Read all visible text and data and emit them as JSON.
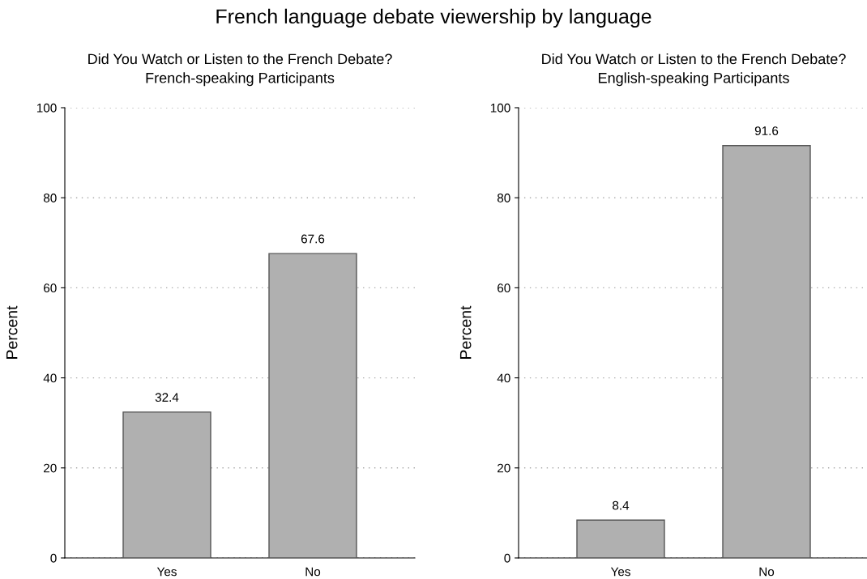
{
  "chart_data": [
    {
      "type": "bar",
      "title": "Did You Watch or Listen to the French Debate?",
      "subtitle": "French-speaking Participants",
      "ylabel": "Percent",
      "categories": [
        "Yes",
        "No"
      ],
      "values": [
        32.4,
        67.6
      ],
      "color": "#b0b0b0",
      "ylim": [
        0,
        100
      ],
      "yticks": [
        0,
        20,
        40,
        60,
        80,
        100
      ],
      "grid": "y",
      "data_labels": true,
      "annotations": [
        "French language debate viewership by language"
      ]
    },
    {
      "type": "bar",
      "title": "Did You Watch or Listen to the French Debate?",
      "subtitle": "English-speaking Participants",
      "ylabel": "Percent",
      "categories": [
        "Yes",
        "No"
      ],
      "values": [
        8.4,
        91.6
      ],
      "color": "#b0b0b0",
      "ylim": [
        0,
        100
      ],
      "yticks": [
        0,
        20,
        40,
        60,
        80,
        100
      ],
      "grid": "y",
      "data_labels": true
    }
  ]
}
